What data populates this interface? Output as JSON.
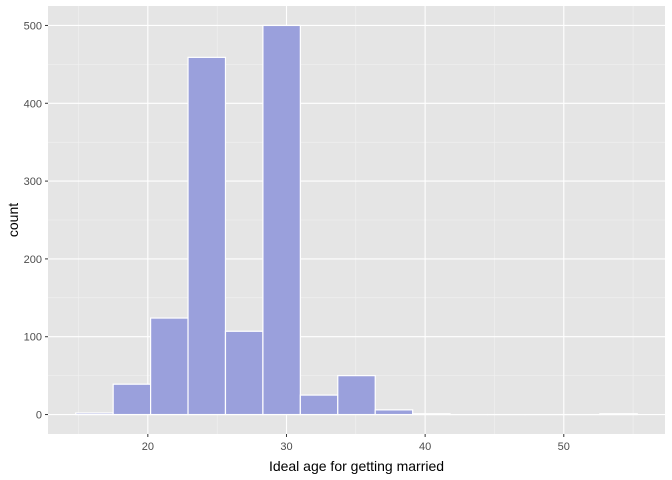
{
  "chart_data": {
    "type": "bar",
    "xlabel": "Ideal age for getting married",
    "ylabel": "count",
    "bin_width": 2.7,
    "bins": [
      {
        "x0": 14.8,
        "x1": 17.5,
        "count": 2
      },
      {
        "x0": 17.5,
        "x1": 20.2,
        "count": 39
      },
      {
        "x0": 20.2,
        "x1": 22.9,
        "count": 124
      },
      {
        "x0": 22.9,
        "x1": 25.6,
        "count": 459
      },
      {
        "x0": 25.6,
        "x1": 28.3,
        "count": 107
      },
      {
        "x0": 28.3,
        "x1": 31.0,
        "count": 500
      },
      {
        "x0": 31.0,
        "x1": 33.7,
        "count": 25
      },
      {
        "x0": 33.7,
        "x1": 36.4,
        "count": 50
      },
      {
        "x0": 36.4,
        "x1": 39.1,
        "count": 6
      },
      {
        "x0": 39.1,
        "x1": 41.8,
        "count": 1
      },
      {
        "x0": 41.8,
        "x1": 44.5,
        "count": 0
      },
      {
        "x0": 44.5,
        "x1": 47.2,
        "count": 0
      },
      {
        "x0": 47.2,
        "x1": 49.9,
        "count": 0
      },
      {
        "x0": 49.9,
        "x1": 52.6,
        "count": 0
      },
      {
        "x0": 52.6,
        "x1": 55.3,
        "count": 1
      }
    ],
    "xlim": [
      12.8,
      57.3
    ],
    "ylim": [
      -25,
      525
    ],
    "x_ticks": [
      20,
      30,
      40,
      50
    ],
    "x_tick_labels": [
      "20",
      "30",
      "40",
      "50"
    ],
    "y_ticks": [
      0,
      100,
      200,
      300,
      400,
      500
    ],
    "y_tick_labels": [
      "0",
      "100",
      "200",
      "300",
      "400",
      "500"
    ],
    "grid": true,
    "colors": {
      "bar_fill": "#9aa0dc",
      "bar_stroke": "#ffffff",
      "panel_background": "#e5e5e5",
      "grid_major": "#ffffff",
      "grid_minor": "#f2f2f2"
    }
  }
}
